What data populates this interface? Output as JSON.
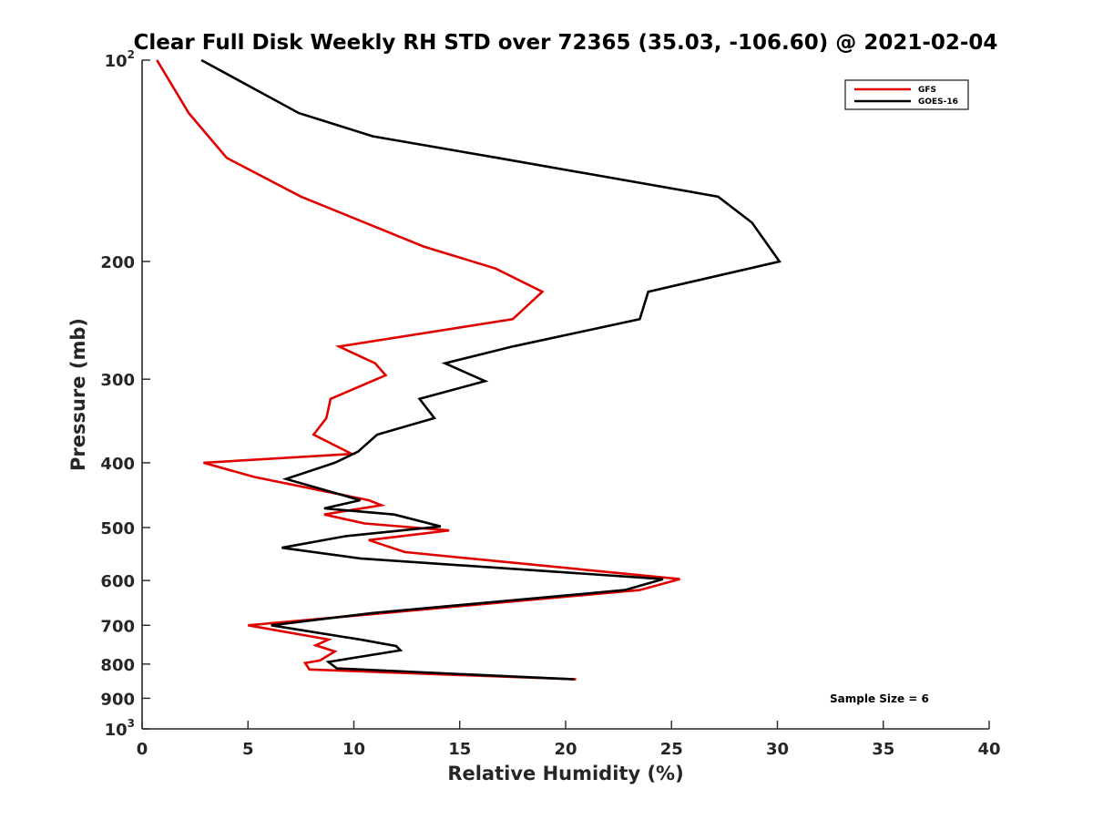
{
  "chart_data": {
    "type": "line",
    "title": "Clear Full Disk Weekly RH STD over 72365 (35.03, -106.60) @ 2021-02-04",
    "xlabel": "Relative Humidity (%)",
    "ylabel": "Pressure (mb)",
    "xlim": [
      0,
      40
    ],
    "ylim": [
      100,
      1000
    ],
    "y_scale": "log",
    "y_reversed": true,
    "grid": false,
    "legend_position": "top-right",
    "x_ticks": [
      "0",
      "5",
      "10",
      "15",
      "20",
      "25",
      "30",
      "35",
      "40"
    ],
    "x_tick_values": [
      0,
      5,
      10,
      15,
      20,
      25,
      30,
      35,
      40
    ],
    "y_ticks": [
      {
        "value": 100,
        "label": "10",
        "sup": "2"
      },
      {
        "value": 200,
        "label": "200",
        "sup": ""
      },
      {
        "value": 300,
        "label": "300",
        "sup": ""
      },
      {
        "value": 400,
        "label": "400",
        "sup": ""
      },
      {
        "value": 500,
        "label": "500",
        "sup": ""
      },
      {
        "value": 600,
        "label": "600",
        "sup": ""
      },
      {
        "value": 700,
        "label": "700",
        "sup": ""
      },
      {
        "value": 800,
        "label": "800",
        "sup": ""
      },
      {
        "value": 900,
        "label": "900",
        "sup": ""
      },
      {
        "value": 1000,
        "label": "10",
        "sup": "3"
      }
    ],
    "series": [
      {
        "name": "GFS",
        "color": "#e00000",
        "points": [
          [
            0.7,
            100
          ],
          [
            2.2,
            120
          ],
          [
            4.0,
            140
          ],
          [
            7.5,
            160
          ],
          [
            13.3,
            190
          ],
          [
            16.7,
            205
          ],
          [
            18.9,
            222
          ],
          [
            17.5,
            244
          ],
          [
            9.3,
            268
          ],
          [
            11.0,
            284
          ],
          [
            11.5,
            296
          ],
          [
            8.9,
            321
          ],
          [
            8.7,
            343
          ],
          [
            8.1,
            363
          ],
          [
            9.9,
            388
          ],
          [
            2.9,
            400
          ],
          [
            5.3,
            420
          ],
          [
            10.7,
            455
          ],
          [
            11.3,
            463
          ],
          [
            8.6,
            478
          ],
          [
            10.5,
            493
          ],
          [
            14.5,
            505
          ],
          [
            10.7,
            522
          ],
          [
            12.4,
            544
          ],
          [
            25.4,
            597
          ],
          [
            23.5,
            620
          ],
          [
            5.0,
            700
          ],
          [
            8.8,
            735
          ],
          [
            8.2,
            750
          ],
          [
            9.1,
            766
          ],
          [
            8.4,
            790
          ],
          [
            7.7,
            797
          ],
          [
            7.9,
            815
          ],
          [
            20.5,
            843
          ]
        ]
      },
      {
        "name": "GOES-16",
        "color": "#000000",
        "points": [
          [
            2.8,
            100
          ],
          [
            7.4,
            120
          ],
          [
            10.9,
            130
          ],
          [
            16.8,
            140
          ],
          [
            27.2,
            160
          ],
          [
            28.8,
            175
          ],
          [
            30.1,
            200
          ],
          [
            23.9,
            222
          ],
          [
            23.5,
            244
          ],
          [
            17.5,
            268
          ],
          [
            14.3,
            284
          ],
          [
            16.2,
            302
          ],
          [
            13.1,
            321
          ],
          [
            13.8,
            343
          ],
          [
            11.1,
            363
          ],
          [
            10.2,
            385
          ],
          [
            9.1,
            400
          ],
          [
            6.8,
            423
          ],
          [
            10.3,
            455
          ],
          [
            8.6,
            468
          ],
          [
            11.9,
            478
          ],
          [
            14.1,
            498
          ],
          [
            9.6,
            515
          ],
          [
            6.6,
            536
          ],
          [
            10.3,
            556
          ],
          [
            24.6,
            597
          ],
          [
            22.8,
            620
          ],
          [
            10.9,
            671
          ],
          [
            6.1,
            700
          ],
          [
            10.4,
            736
          ],
          [
            12.0,
            752
          ],
          [
            12.2,
            763
          ],
          [
            8.8,
            794
          ],
          [
            9.2,
            812
          ],
          [
            20.4,
            843
          ]
        ]
      }
    ],
    "annotation": "Sample Size = 6"
  }
}
